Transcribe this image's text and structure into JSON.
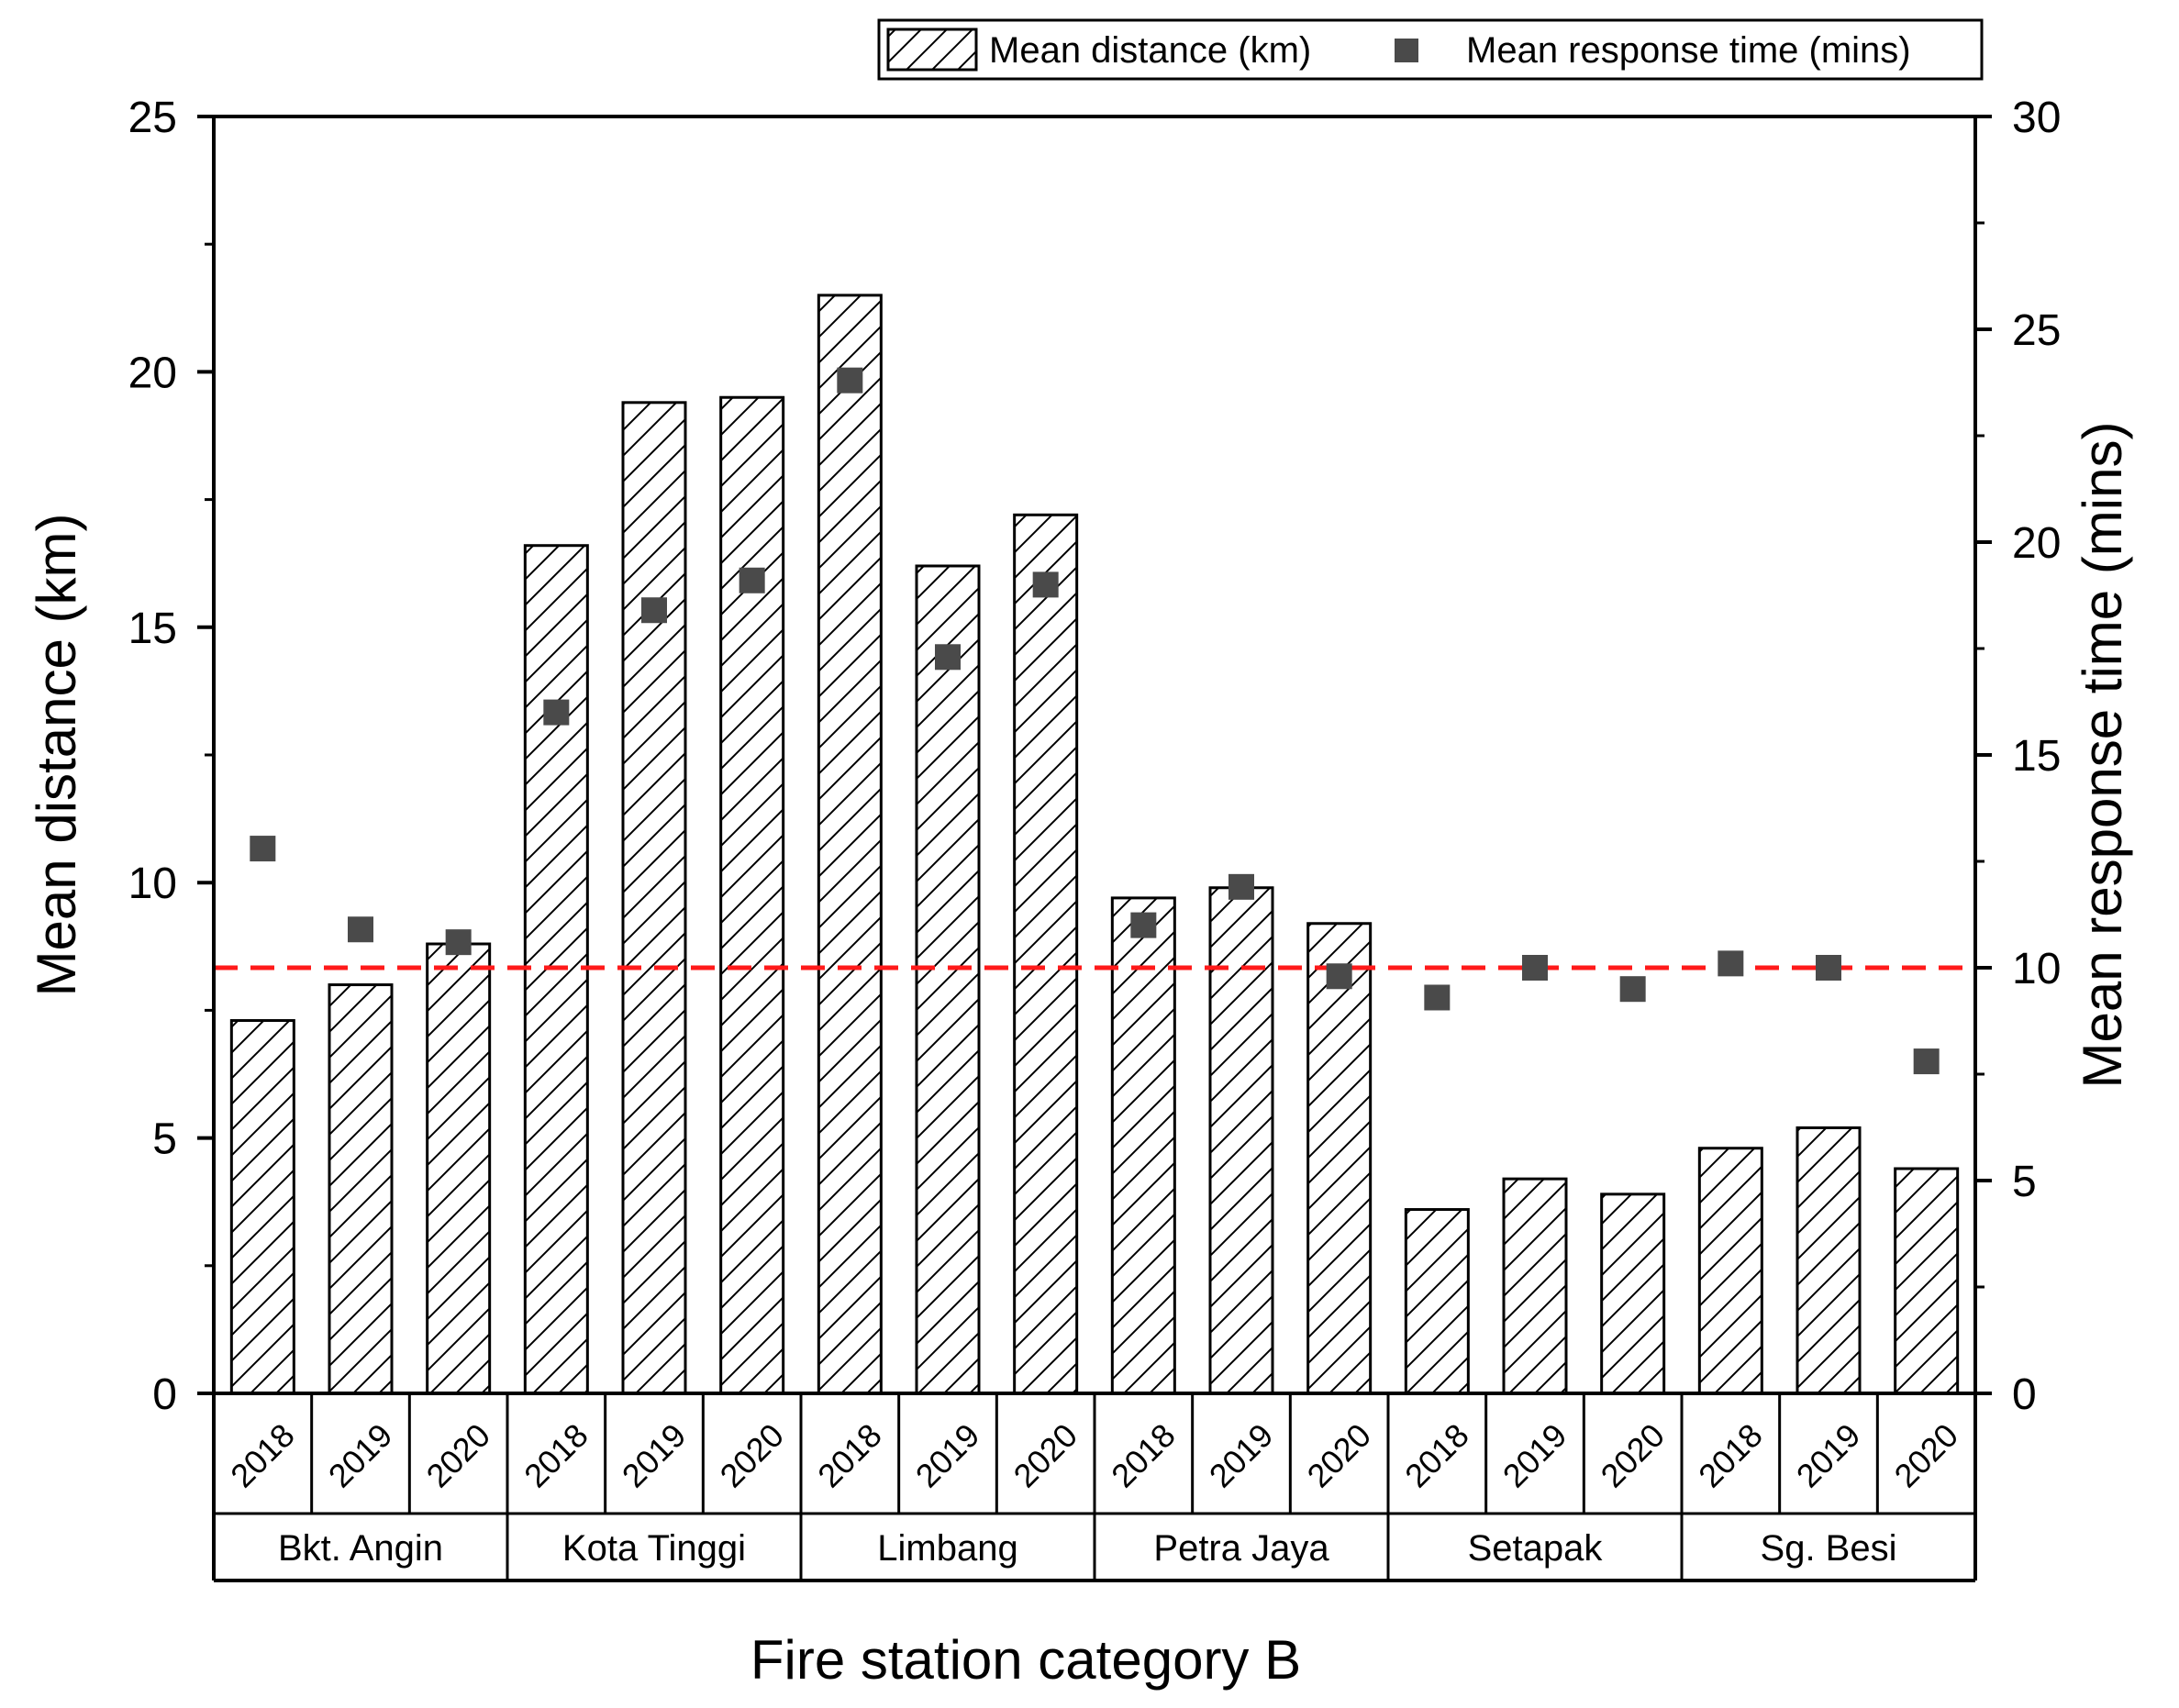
{
  "chart_data": {
    "type": "bar",
    "xlabel": "Fire station category B",
    "ylabel_left": "Mean distance (km)",
    "ylabel_right": "Mean response time (mins)",
    "ylim_left": [
      0,
      25
    ],
    "ylim_right": [
      0,
      30
    ],
    "yticks_left": [
      "0",
      "5",
      "10",
      "15",
      "20",
      "25"
    ],
    "yticks_right": [
      "0",
      "5",
      "10",
      "15",
      "20",
      "25",
      "30"
    ],
    "reference_line": {
      "axis": "right",
      "value": 10,
      "color": "#ff1a1a",
      "style": "dashed"
    },
    "years": [
      "2018",
      "2019",
      "2020"
    ],
    "groups": [
      "Bkt. Angin",
      "Kota Tinggi",
      "Limbang",
      "Petra Jaya",
      "Setapak",
      "Sg. Besi"
    ],
    "categories": [
      "Bkt. Angin 2018",
      "Bkt. Angin 2019",
      "Bkt. Angin 2020",
      "Kota Tinggi 2018",
      "Kota Tinggi 2019",
      "Kota Tinggi 2020",
      "Limbang 2018",
      "Limbang 2019",
      "Limbang 2020",
      "Petra Jaya 2018",
      "Petra Jaya 2019",
      "Petra Jaya 2020",
      "Setapak 2018",
      "Setapak 2019",
      "Setapak 2020",
      "Sg. Besi 2018",
      "Sg. Besi 2019",
      "Sg. Besi 2020"
    ],
    "series": [
      {
        "name": "Mean distance (km)",
        "type": "bar",
        "axis": "left",
        "pattern": "hatched",
        "values": [
          7.3,
          8.0,
          8.8,
          16.6,
          19.4,
          19.5,
          21.5,
          16.2,
          17.2,
          9.7,
          9.9,
          9.2,
          3.6,
          4.2,
          3.9,
          4.8,
          5.2,
          4.4
        ]
      },
      {
        "name": "Mean response time (mins)",
        "type": "scatter",
        "axis": "right",
        "marker": "square",
        "color": "#4a4a4a",
        "values": [
          12.8,
          10.9,
          10.6,
          16.0,
          18.4,
          19.1,
          23.8,
          17.3,
          19.0,
          11.0,
          11.9,
          9.8,
          9.3,
          10.0,
          9.5,
          10.1,
          10.0,
          7.8
        ]
      }
    ],
    "legend": {
      "position": "top-right"
    }
  }
}
